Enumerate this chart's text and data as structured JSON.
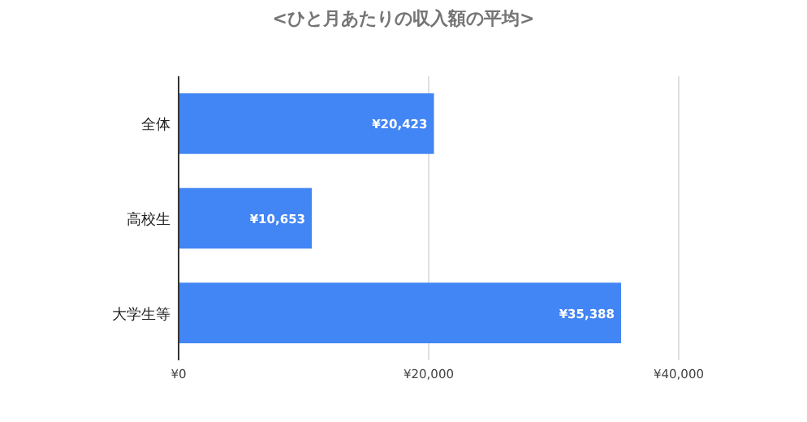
{
  "chart_data": {
    "type": "bar",
    "orientation": "horizontal",
    "title": "<ひと月あたりの収入額の平均>",
    "categories": [
      "全体",
      "高校生",
      "大学生等"
    ],
    "values": [
      20423,
      10653,
      35388
    ],
    "value_labels": [
      "¥20,423",
      "¥10,653",
      "¥35,388"
    ],
    "color": "#4285f4",
    "xlim": [
      0,
      40000
    ],
    "xticks": [
      {
        "value": 0,
        "label": "¥0"
      },
      {
        "value": 20000,
        "label": "¥20,000"
      },
      {
        "value": 40000,
        "label": "¥40,000"
      }
    ],
    "grid": "x"
  }
}
